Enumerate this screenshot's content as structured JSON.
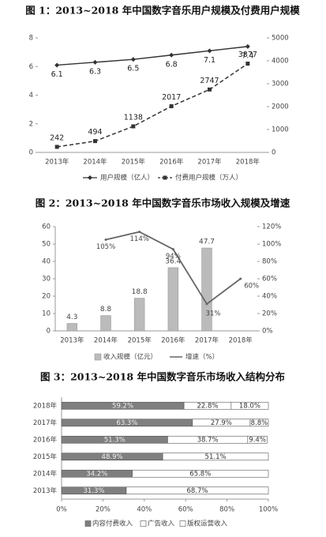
{
  "chart_data": [
    {
      "type": "line",
      "title": "图 1：2013~2018 年中国数字音乐用户规模及付费用户规模",
      "categories": [
        "2013年",
        "2014年",
        "2015年",
        "2016年",
        "2017年",
        "2018年"
      ],
      "series": [
        {
          "name": "用户规模（亿人）",
          "color": "#333333",
          "values": [
            6.1,
            6.3,
            6.5,
            6.8,
            7.1,
            7.4
          ]
        },
        {
          "name": "付费用户规模（万人）",
          "color": "#333333",
          "axis": "y2",
          "values": [
            242,
            494,
            1138,
            2017,
            2747,
            3877
          ]
        }
      ],
      "ylim": [
        0,
        8
      ],
      "yticks": [
        0,
        2,
        4,
        6,
        8
      ],
      "y2lim": [
        0,
        5000
      ],
      "y2ticks": [
        0,
        1000,
        2000,
        3000,
        4000,
        5000
      ],
      "grid": false
    },
    {
      "type": "bar",
      "title": "图 2：2013~2018 年中国数字音乐市场收入规模及增速",
      "categories": [
        "2013年",
        "2014年",
        "2015年",
        "2016年",
        "2017年",
        "2018年"
      ],
      "series": [
        {
          "name": "收入规模（亿元）",
          "color": "#bbbbbb",
          "values": [
            4.3,
            8.8,
            18.8,
            36.4,
            47.7,
            null
          ]
        },
        {
          "name": "增速（%）",
          "color": "#666666",
          "axis": "y2",
          "values": [
            null,
            105,
            114,
            94,
            31,
            60
          ],
          "value_labels": [
            null,
            "105%",
            "114%",
            "94%",
            "31%",
            "60%"
          ]
        }
      ],
      "ylim": [
        0,
        60
      ],
      "yticks": [
        0,
        10,
        20,
        30,
        40,
        50,
        60
      ],
      "y2lim": [
        0,
        120
      ],
      "y2ticks": [
        {
          "value": 0,
          "label": "0%"
        },
        {
          "value": 20,
          "label": "20%"
        },
        {
          "value": 40,
          "label": "40%"
        },
        {
          "value": 60,
          "label": "60%"
        },
        {
          "value": 80,
          "label": "80%"
        },
        {
          "value": 100,
          "label": "100%"
        },
        {
          "value": 120,
          "label": "120%"
        }
      ],
      "grid": false
    },
    {
      "type": "stacked_bar",
      "title": "图 3：2013~2018 年中国数字音乐市场收入结构分布",
      "categories": [
        "2018年",
        "2017年",
        "2016年",
        "2015年",
        "2014年",
        "2013年"
      ],
      "series": [
        {
          "name": "内容付费收入",
          "color": "#7f7f7f",
          "values": [
            59.2,
            63.3,
            51.3,
            48.9,
            34.2,
            31.3
          ],
          "value_labels": [
            "59.2%",
            "63.3%",
            "51.3%",
            "48.9%",
            "34.2%",
            "31.3%"
          ]
        },
        {
          "name": "广告收入",
          "color": "#ffffff",
          "values": [
            22.8,
            27.9,
            38.7,
            51.1,
            65.8,
            68.7
          ],
          "value_labels": [
            "22.8%",
            "27.9%",
            "38.7%",
            "51.1%",
            "65.8%",
            "68.7%"
          ]
        },
        {
          "name": "版权运营收入",
          "color": "#ffffff",
          "values": [
            18.0,
            8.8,
            9.4,
            null,
            null,
            null
          ],
          "value_labels": [
            "18.0%",
            "8.8%",
            "9.4%",
            null,
            null,
            null
          ]
        }
      ],
      "xlim": [
        0,
        100
      ],
      "xticks": [
        {
          "value": 0,
          "label": "0%"
        },
        {
          "value": 20,
          "label": "20%"
        },
        {
          "value": 40,
          "label": "40%"
        },
        {
          "value": 60,
          "label": "60%"
        },
        {
          "value": 80,
          "label": "80%"
        },
        {
          "value": 100,
          "label": "100%"
        }
      ],
      "grid": false
    }
  ]
}
